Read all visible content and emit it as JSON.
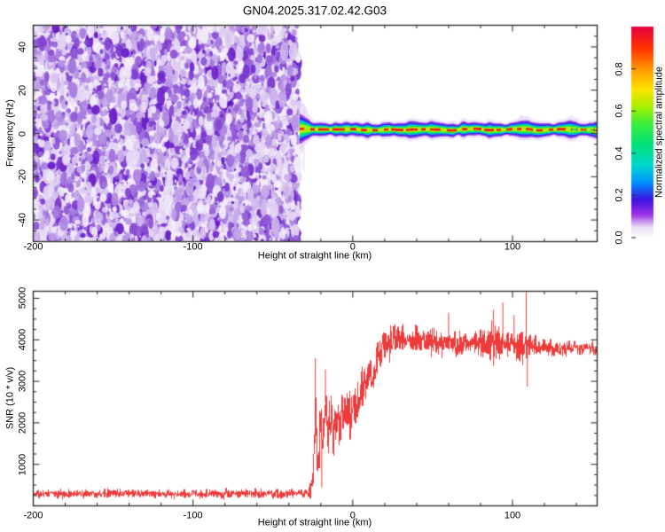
{
  "title": "GN04.2025.317.02.42.G03",
  "colors": {
    "background": "#ffffff",
    "frame": "#333333",
    "trace": "#ee3b3b",
    "noise_purple": "#5e0ec4",
    "noise_background": "#f6f0fb"
  },
  "chart_data": [
    {
      "type": "heatmap",
      "title": "GN04.2025.317.02.42.G03",
      "xlabel": "Height of straight line (km)",
      "ylabel": "Frequency (Hz)",
      "xlim": [
        -200,
        153
      ],
      "ylim": [
        -50,
        50
      ],
      "xticks": {
        "values": [
          -200,
          -100,
          0,
          100
        ],
        "labels": [
          "-200",
          "-100",
          "0",
          "100"
        ],
        "minor_step": 20
      },
      "yticks": {
        "values": [
          -40,
          -20,
          0,
          20,
          40
        ],
        "labels": [
          "-40",
          "-20",
          "0",
          "20",
          "40"
        ],
        "minor_step": 5
      },
      "colorbar": {
        "label": "Normalized spectral amplitude",
        "range": [
          0,
          1
        ],
        "ticks": {
          "values": [
            0,
            0.2,
            0.4,
            0.6,
            0.8
          ],
          "labels": [
            "0.0",
            "0.2",
            "0.4",
            "0.6",
            "0.8"
          ]
        },
        "stops": [
          [
            0,
            "#ffffff"
          ],
          [
            0.05,
            "#eadef7"
          ],
          [
            0.11,
            "#9b30e8"
          ],
          [
            0.18,
            "#3c14e0"
          ],
          [
            0.26,
            "#0090ff"
          ],
          [
            0.34,
            "#00d8d0"
          ],
          [
            0.44,
            "#00e07a"
          ],
          [
            0.54,
            "#3cee3c"
          ],
          [
            0.62,
            "#a8f000"
          ],
          [
            0.7,
            "#ffe400"
          ],
          [
            0.79,
            "#ffa000"
          ],
          [
            0.9,
            "#ff3000"
          ],
          [
            1,
            "#e80040"
          ]
        ]
      },
      "noise_region": {
        "x_range_km": [
          -200,
          -34
        ],
        "amplitude_range": [
          0,
          0.35
        ],
        "description": "incoherent purple speckle noise filling all frequencies"
      },
      "echo_band": {
        "x_range_km": [
          -33,
          153
        ],
        "center_freq_hz": 0,
        "core_half_width_hz": 1,
        "fringe_half_width_hz": 5,
        "core_amplitude": 0.95,
        "description": "narrow rainbow-layered echo stripe, red dashed core, green core near right edge"
      }
    },
    {
      "type": "line",
      "xlabel": "Height of straight line (km)",
      "ylabel": "SNR (10 * v/v)",
      "xlim": [
        -200,
        153
      ],
      "ylim": [
        0,
        5170
      ],
      "xticks": {
        "values": [
          -200,
          -100,
          0,
          100
        ],
        "labels": [
          "-200",
          "-100",
          "0",
          "100"
        ],
        "minor_step": 20
      },
      "yticks": {
        "values": [
          1000,
          2000,
          3000,
          4000,
          5000
        ],
        "labels": [
          "1000",
          "2000",
          "3000",
          "4000",
          "5000"
        ],
        "minor_step": 250
      },
      "series": [
        {
          "name": "SNR",
          "color": "#ee3b3b",
          "mean": [
            [
              -200,
              290
            ],
            [
              -28,
              290
            ],
            [
              -26.5,
              430
            ],
            [
              -25,
              850
            ],
            [
              -23.6,
              2600
            ],
            [
              -23.2,
              1900
            ],
            [
              -22.6,
              1050
            ],
            [
              -22,
              950
            ],
            [
              -21.2,
              1550
            ],
            [
              -20.3,
              2050
            ],
            [
              -19.4,
              1650
            ],
            [
              -18.4,
              2050
            ],
            [
              -17.2,
              2600
            ],
            [
              -16.6,
              1950
            ],
            [
              -15.5,
              1800
            ],
            [
              -13.8,
              2150
            ],
            [
              -12.2,
              1550
            ],
            [
              -10.5,
              2150
            ],
            [
              -8.8,
              1950
            ],
            [
              -7,
              2300
            ],
            [
              -5.2,
              2150
            ],
            [
              -3.5,
              2450
            ],
            [
              -1.8,
              2300
            ],
            [
              0,
              2550
            ],
            [
              2,
              2450
            ],
            [
              4,
              2650
            ],
            [
              6,
              2800
            ],
            [
              8,
              2950
            ],
            [
              10,
              3250
            ],
            [
              12,
              3100
            ],
            [
              14,
              3400
            ],
            [
              16,
              3550
            ],
            [
              18,
              3700
            ],
            [
              20,
              3850
            ],
            [
              23,
              3950
            ],
            [
              26,
              4000
            ],
            [
              30,
              4050
            ],
            [
              35,
              4000
            ],
            [
              40,
              4060
            ],
            [
              45,
              3960
            ],
            [
              50,
              4010
            ],
            [
              55,
              3920
            ],
            [
              60,
              3970
            ],
            [
              65,
              3900
            ],
            [
              70,
              3960
            ],
            [
              75,
              3900
            ],
            [
              80,
              3950
            ],
            [
              85,
              3900
            ],
            [
              88,
              3960
            ],
            [
              92,
              3900
            ],
            [
              96,
              3860
            ],
            [
              100,
              3910
            ],
            [
              104,
              3860
            ],
            [
              108,
              3820
            ],
            [
              112,
              3860
            ],
            [
              116,
              3810
            ],
            [
              120,
              3770
            ],
            [
              125,
              3820
            ],
            [
              130,
              3770
            ],
            [
              135,
              3810
            ],
            [
              140,
              3770
            ],
            [
              145,
              3810
            ],
            [
              150,
              3780
            ],
            [
              153,
              3800
            ]
          ],
          "noise_amp": [
            [
              -200,
              105
            ],
            [
              -28,
              105
            ],
            [
              -26,
              260
            ],
            [
              -24,
              480
            ],
            [
              -20,
              560
            ],
            [
              -15,
              540
            ],
            [
              -10,
              520
            ],
            [
              -5,
              560
            ],
            [
              0,
              520
            ],
            [
              5,
              560
            ],
            [
              10,
              510
            ],
            [
              15,
              460
            ],
            [
              20,
              410
            ],
            [
              25,
              360
            ],
            [
              30,
              310
            ],
            [
              40,
              280
            ],
            [
              50,
              300
            ],
            [
              60,
              280
            ],
            [
              70,
              300
            ],
            [
              80,
              330
            ],
            [
              84,
              420
            ],
            [
              88,
              470
            ],
            [
              92,
              380
            ],
            [
              96,
              310
            ],
            [
              100,
              330
            ],
            [
              104,
              380
            ],
            [
              107,
              420
            ],
            [
              110,
              300
            ],
            [
              115,
              230
            ],
            [
              120,
              205
            ],
            [
              130,
              190
            ],
            [
              140,
              185
            ],
            [
              153,
              175
            ]
          ],
          "spikes": [
            [
              -23.4,
              3560
            ],
            [
              -19.4,
              440
            ],
            [
              -17.1,
              3290
            ],
            [
              60,
              4650
            ],
            [
              88,
              4730
            ],
            [
              94,
              4900
            ],
            [
              101,
              4600
            ],
            [
              108.6,
              5160
            ],
            [
              109.3,
              2870
            ]
          ]
        }
      ]
    }
  ]
}
